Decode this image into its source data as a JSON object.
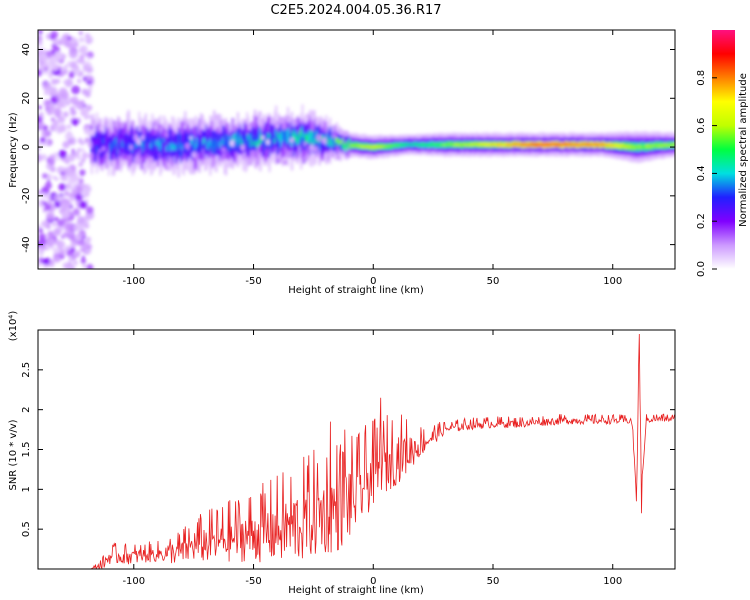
{
  "figure": {
    "title": "C2E5.2024.004.05.36.R17"
  },
  "chart_data": [
    {
      "type": "heatmap",
      "xlabel": "Height of straight line (km)",
      "ylabel": "Frequency (Hz)",
      "xlim": [
        -140,
        126
      ],
      "ylim": [
        -50,
        48
      ],
      "xticks": [
        -100,
        -50,
        0,
        50,
        100
      ],
      "yticks": [
        -40,
        -20,
        0,
        20,
        40
      ],
      "colorbar": {
        "label": "Normalized spectral amplitude",
        "range": [
          0,
          1
        ],
        "ticks": [
          0.0,
          0.2,
          0.4,
          0.6,
          0.8
        ],
        "colors": [
          "#ffffff",
          "#cc99ff",
          "#8000ff",
          "#2020ff",
          "#00e0e0",
          "#00ff40",
          "#c0ff00",
          "#ffff00",
          "#ff8000",
          "#ff0000",
          "#ff1080"
        ]
      },
      "noise_region": {
        "x": [
          -140,
          -118
        ],
        "y": [
          -50,
          48
        ],
        "amplitude": 0.12
      },
      "band_profile": [
        {
          "x": -118,
          "center": 1,
          "halfwidth": 6,
          "amplitude": 0.25
        },
        {
          "x": -100,
          "center": 1,
          "halfwidth": 6,
          "amplitude": 0.3
        },
        {
          "x": -80,
          "center": 1,
          "halfwidth": 6,
          "amplitude": 0.33
        },
        {
          "x": -60,
          "center": 2,
          "halfwidth": 6,
          "amplitude": 0.35
        },
        {
          "x": -45,
          "center": 3,
          "halfwidth": 6,
          "amplitude": 0.38
        },
        {
          "x": -30,
          "center": 4,
          "halfwidth": 6,
          "amplitude": 0.4
        },
        {
          "x": -20,
          "center": 3,
          "halfwidth": 5,
          "amplitude": 0.4
        },
        {
          "x": -12,
          "center": 1,
          "halfwidth": 3,
          "amplitude": 0.55
        },
        {
          "x": 0,
          "center": 0,
          "halfwidth": 3,
          "amplitude": 0.65
        },
        {
          "x": 15,
          "center": 1,
          "halfwidth": 2.5,
          "amplitude": 0.45
        },
        {
          "x": 30,
          "center": 1,
          "halfwidth": 3,
          "amplitude": 0.55
        },
        {
          "x": 50,
          "center": 1,
          "halfwidth": 3,
          "amplitude": 0.7
        },
        {
          "x": 70,
          "center": 1,
          "halfwidth": 3,
          "amplitude": 0.85
        },
        {
          "x": 95,
          "center": 1,
          "halfwidth": 3,
          "amplitude": 0.78
        },
        {
          "x": 110,
          "center": 0,
          "halfwidth": 4,
          "amplitude": 0.55
        },
        {
          "x": 126,
          "center": 1,
          "halfwidth": 3,
          "amplitude": 0.6
        }
      ]
    },
    {
      "type": "line",
      "xlabel": "Height of straight line (km)",
      "ylabel": "SNR (10 * v/v)",
      "y_multiplier": "(x10⁴)",
      "xlim": [
        -140,
        126
      ],
      "ylim": [
        0,
        3.0
      ],
      "xticks": [
        -100,
        -50,
        0,
        50,
        100
      ],
      "yticks": [
        0.5,
        1.0,
        1.5,
        2.0,
        2.5
      ],
      "color": "#e82020",
      "series": [
        {
          "x": [
            -140,
            -118,
            -113,
            -110,
            -105,
            -100,
            -90,
            -80,
            -75,
            -70,
            -65,
            -60,
            -55,
            -50,
            -45,
            -40,
            -35,
            -30,
            -25,
            -20,
            -15,
            -10,
            -8,
            -5,
            -3,
            0,
            3,
            6,
            10,
            15,
            20,
            25,
            30,
            40,
            50,
            60,
            70,
            80,
            90,
            100,
            105,
            108,
            110,
            111,
            112,
            114,
            118,
            126
          ],
          "y": [
            0.0,
            0.0,
            0.05,
            0.15,
            0.15,
            0.15,
            0.18,
            0.2,
            0.28,
            0.3,
            0.32,
            0.35,
            0.38,
            0.4,
            0.42,
            0.45,
            0.48,
            0.52,
            0.6,
            0.65,
            0.7,
            0.8,
            0.85,
            0.95,
            1.05,
            1.15,
            1.2,
            1.3,
            1.38,
            1.45,
            1.55,
            1.65,
            1.75,
            1.8,
            1.82,
            1.82,
            1.84,
            1.86,
            1.86,
            1.86,
            1.86,
            1.86,
            0.9,
            2.9,
            1.0,
            1.87,
            1.88,
            1.88
          ]
        }
      ],
      "noise_amplitude": [
        {
          "x": -118,
          "a": 0.0
        },
        {
          "x": -110,
          "a": 0.1
        },
        {
          "x": -90,
          "a": 0.1
        },
        {
          "x": -70,
          "a": 0.25
        },
        {
          "x": -50,
          "a": 0.35
        },
        {
          "x": -30,
          "a": 0.5
        },
        {
          "x": -15,
          "a": 0.55
        },
        {
          "x": -5,
          "a": 0.45
        },
        {
          "x": 10,
          "a": 0.35
        },
        {
          "x": 20,
          "a": 0.15
        },
        {
          "x": 30,
          "a": 0.06
        },
        {
          "x": 126,
          "a": 0.04
        }
      ],
      "spikes": [
        {
          "x": -18,
          "y": 1.85
        },
        {
          "x": -12,
          "y": 1.75
        },
        {
          "x": 3,
          "y": 2.15
        },
        {
          "x": 110,
          "y": 0.85
        },
        {
          "x": 111,
          "y": 2.95
        },
        {
          "x": 112,
          "y": 0.7
        }
      ]
    }
  ]
}
